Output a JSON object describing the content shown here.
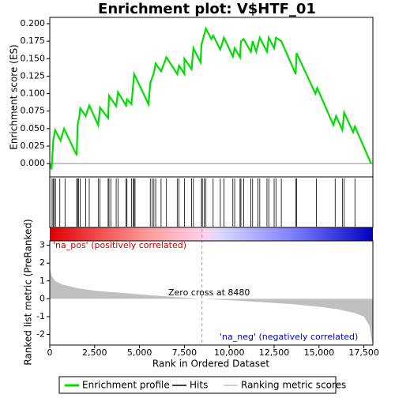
{
  "chart_data": {
    "type": "line",
    "title": "Enrichment plot: V$HTF_01",
    "xlabel": "Rank in Ordered Dataset",
    "ylabel": "Enrichment score (ES)",
    "y2label": "Ranked list metric (PreRanked)",
    "xlim": [
      0,
      18000
    ],
    "xticks": [
      0,
      {
        "value": 2500,
        "label": "2,500"
      },
      {
        "value": 5000,
        "label": "5,000"
      },
      {
        "value": 7500,
        "label": "7,500"
      },
      {
        "value": 10000,
        "label": "10,000"
      },
      {
        "value": 12500,
        "label": "12,500"
      },
      {
        "value": 15000,
        "label": "15,000"
      },
      {
        "value": 17500,
        "label": "17,500"
      }
    ],
    "ylim": [
      -0.019,
      0.209
    ],
    "yticks": [
      {
        "value": 0,
        "label": "0.000"
      },
      {
        "value": 0.025,
        "label": "0.025"
      },
      {
        "value": 0.05,
        "label": "0.050"
      },
      {
        "value": 0.075,
        "label": "0.075"
      },
      {
        "value": 0.1,
        "label": "0.100"
      },
      {
        "value": 0.125,
        "label": "0.125"
      },
      {
        "value": 0.15,
        "label": "0.150"
      },
      {
        "value": 0.175,
        "label": "0.175"
      },
      {
        "value": 0.2,
        "label": "0.200"
      }
    ],
    "y2lim": [
      -2.6,
      3.25
    ],
    "y2ticks": [
      -2,
      -1,
      0,
      1,
      2,
      3
    ],
    "zero_cross": 8480,
    "annotations": [
      "'na_pos' (positively correlated)",
      "Zero cross at 8480",
      "'na_neg' (negatively correlated)"
    ],
    "series": [
      {
        "name": "Enrichment profile",
        "color": "#00dd00",
        "x": [
          0,
          100,
          200,
          300,
          600,
          800,
          1500,
          1550,
          1650,
          1700,
          2000,
          2200,
          2700,
          2800,
          3250,
          3300,
          3700,
          3800,
          4250,
          4300,
          4550,
          4700,
          5500,
          5600,
          5800,
          5900,
          6200,
          6500,
          7100,
          7200,
          7500,
          7500,
          7900,
          8000,
          8400,
          8450,
          8700,
          9000,
          9100,
          9500,
          9700,
          10200,
          10300,
          10600,
          10650,
          10800,
          11200,
          11300,
          11500,
          11700,
          12100,
          12200,
          12500,
          12600,
          12900,
          13700,
          13750,
          14800,
          14900,
          15800,
          15950,
          16300,
          16400,
          16900,
          17000,
          17900
        ],
        "values": [
          0,
          -0.008,
          0.035,
          0.048,
          0.033,
          0.05,
          0.012,
          0.055,
          0.068,
          0.079,
          0.068,
          0.083,
          0.055,
          0.08,
          0.065,
          0.097,
          0.082,
          0.102,
          0.083,
          0.092,
          0.085,
          0.128,
          0.085,
          0.115,
          0.13,
          0.143,
          0.132,
          0.152,
          0.128,
          0.14,
          0.128,
          0.15,
          0.135,
          0.165,
          0.145,
          0.17,
          0.193,
          0.178,
          0.183,
          0.163,
          0.18,
          0.153,
          0.165,
          0.152,
          0.175,
          0.178,
          0.16,
          0.175,
          0.16,
          0.18,
          0.16,
          0.18,
          0.165,
          0.18,
          0.175,
          0.128,
          0.158,
          0.1,
          0.108,
          0.055,
          0.068,
          0.048,
          0.073,
          0.045,
          0.053,
          0
        ]
      },
      {
        "name": "Hits",
        "color": "#000000",
        "x": [
          130,
          190,
          250,
          320,
          560,
          850,
          1500,
          1550,
          1600,
          1700,
          2000,
          2200,
          2700,
          2800,
          3250,
          3300,
          3400,
          3700,
          3800,
          4250,
          4300,
          4550,
          4650,
          4700,
          4750,
          5600,
          5700,
          5800,
          5900,
          6200,
          6500,
          7100,
          7200,
          7500,
          7900,
          8000,
          8450,
          8500,
          8600,
          8700,
          9100,
          9500,
          9700,
          10200,
          10300,
          10600,
          10650,
          10800,
          11200,
          11300,
          11600,
          11700,
          12100,
          12200,
          12500,
          12600,
          12900,
          13700,
          13750,
          14850,
          15900,
          16300,
          16400,
          17000
        ]
      },
      {
        "name": "Ranking metric scores",
        "color": "#c0c0c0",
        "axis": "y2",
        "x": [
          0,
          100,
          300,
          700,
          1500,
          2500,
          4000,
          5000,
          6000,
          7000,
          8480,
          10000,
          12000,
          13500,
          15000,
          16000,
          17000,
          17500,
          17800,
          17950,
          17990
        ],
        "values": [
          1.7,
          1.3,
          1.0,
          0.8,
          0.6,
          0.45,
          0.33,
          0.25,
          0.17,
          0.1,
          0,
          -0.08,
          -0.2,
          -0.3,
          -0.45,
          -0.58,
          -0.8,
          -1.0,
          -1.5,
          -2.4,
          -2.4
        ]
      }
    ]
  }
}
